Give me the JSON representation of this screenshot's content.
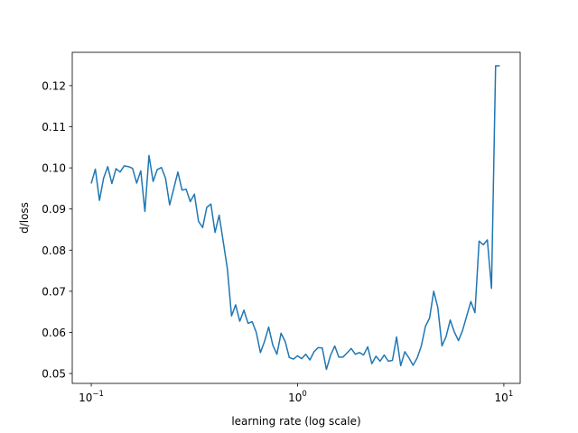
{
  "chart_data": {
    "type": "line",
    "xlabel": "learning rate (log scale)",
    "ylabel": "d/loss",
    "xscale": "log",
    "grid": false,
    "xlim": [
      0.0809,
      12.0
    ],
    "ylim": [
      0.0476,
      0.1281
    ],
    "xticks": [
      {
        "value": 0.1,
        "label": "10",
        "exponent": "−1"
      },
      {
        "value": 1,
        "label": "10",
        "exponent": "0"
      },
      {
        "value": 10,
        "label": "10",
        "exponent": "1"
      }
    ],
    "yticks": [
      0.05,
      0.06,
      0.07,
      0.08,
      0.09,
      {
        "value": 0.1,
        "label": "0.10"
      },
      0.11,
      0.12
    ],
    "x": [
      0.1,
      0.1047,
      0.1096,
      0.1148,
      0.1202,
      0.1259,
      0.1318,
      0.138,
      0.1445,
      0.1514,
      0.1585,
      0.166,
      0.1738,
      0.182,
      0.1905,
      0.1995,
      0.2089,
      0.2188,
      0.2291,
      0.2399,
      0.2512,
      0.263,
      0.2754,
      0.2884,
      0.302,
      0.3162,
      0.3311,
      0.3467,
      0.3631,
      0.3802,
      0.3981,
      0.4169,
      0.4365,
      0.4571,
      0.4786,
      0.5012,
      0.5248,
      0.5495,
      0.5754,
      0.6026,
      0.631,
      0.6607,
      0.6918,
      0.7244,
      0.7586,
      0.7943,
      0.8318,
      0.871,
      0.912,
      0.955,
      1.0,
      1.047,
      1.096,
      1.148,
      1.202,
      1.259,
      1.318,
      1.38,
      1.445,
      1.514,
      1.585,
      1.66,
      1.738,
      1.82,
      1.905,
      1.995,
      2.089,
      2.188,
      2.291,
      2.399,
      2.512,
      2.63,
      2.754,
      2.884,
      3.02,
      3.162,
      3.311,
      3.467,
      3.631,
      3.802,
      3.981,
      4.169,
      4.365,
      4.571,
      4.786,
      5.012,
      5.248,
      5.495,
      5.754,
      6.026,
      6.31,
      6.607,
      6.918,
      7.244,
      7.586,
      7.943,
      8.318,
      8.71,
      9.12,
      9.55
    ],
    "series": [
      {
        "color": "#1f77b4",
        "values": [
          0.0962,
          0.0997,
          0.0921,
          0.0975,
          0.1003,
          0.0962,
          0.0998,
          0.099,
          0.1005,
          0.1003,
          0.0999,
          0.0963,
          0.0993,
          0.0894,
          0.103,
          0.0967,
          0.0996,
          0.1001,
          0.0975,
          0.091,
          0.095,
          0.099,
          0.0946,
          0.0948,
          0.0918,
          0.0936,
          0.087,
          0.0855,
          0.0904,
          0.0912,
          0.0843,
          0.0885,
          0.082,
          0.0754,
          0.064,
          0.0667,
          0.0627,
          0.0654,
          0.0622,
          0.0626,
          0.06,
          0.0551,
          0.0578,
          0.0613,
          0.0569,
          0.0547,
          0.0598,
          0.0578,
          0.0539,
          0.0535,
          0.0543,
          0.0536,
          0.0547,
          0.0533,
          0.0553,
          0.0563,
          0.0562,
          0.051,
          0.0544,
          0.0567,
          0.054,
          0.054,
          0.055,
          0.0561,
          0.0547,
          0.0551,
          0.0545,
          0.0565,
          0.0524,
          0.0542,
          0.053,
          0.0545,
          0.053,
          0.0532,
          0.0589,
          0.0519,
          0.0553,
          0.0538,
          0.052,
          0.0538,
          0.0567,
          0.0615,
          0.0635,
          0.07,
          0.066,
          0.0567,
          0.059,
          0.063,
          0.0601,
          0.058,
          0.0605,
          0.064,
          0.0675,
          0.0648,
          0.0822,
          0.0813,
          0.0825,
          0.0707,
          0.1248,
          0.1248
        ]
      }
    ]
  }
}
